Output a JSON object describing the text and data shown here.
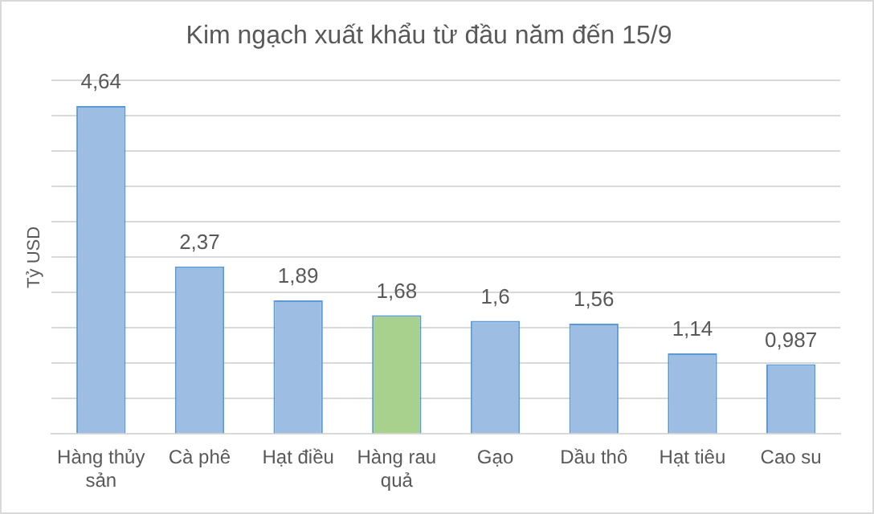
{
  "chart_data": {
    "type": "bar",
    "title": "Kim ngạch xuất khẩu từ đầu năm đến 15/9",
    "ylabel": "Tỷ USD",
    "categories": [
      "Hàng thủy sản",
      "Cà phê",
      "Hạt điều",
      "Hàng rau quả",
      "Gạo",
      "Dầu thô",
      "Hạt tiêu",
      "Cao su"
    ],
    "values": [
      4.64,
      2.37,
      1.89,
      1.68,
      1.6,
      1.56,
      1.14,
      0.987
    ],
    "colors": [
      "#9dbde3",
      "#9dbde3",
      "#9dbde3",
      "#a9d18e",
      "#9dbde3",
      "#9dbde3",
      "#9dbde3",
      "#9dbde3"
    ],
    "value_labels": [
      "4,64",
      "2,37",
      "1,89",
      "1,68",
      "1,6",
      "1,56",
      "1,14",
      "0,987"
    ],
    "ylim": [
      0,
      5
    ],
    "yticks": [
      {
        "value": 0,
        "label": null
      },
      {
        "value": 0.5,
        "label": null
      },
      {
        "value": 1,
        "label": null
      },
      {
        "value": 1.5,
        "label": null
      },
      {
        "value": 2,
        "label": null
      },
      {
        "value": 2.5,
        "label": null
      },
      {
        "value": 3,
        "label": null
      },
      {
        "value": 3.5,
        "label": null
      },
      {
        "value": 4,
        "label": null
      },
      {
        "value": 4.5,
        "label": null
      },
      {
        "value": 5,
        "label": null
      }
    ],
    "grid": "y",
    "tick_labels": "x"
  }
}
